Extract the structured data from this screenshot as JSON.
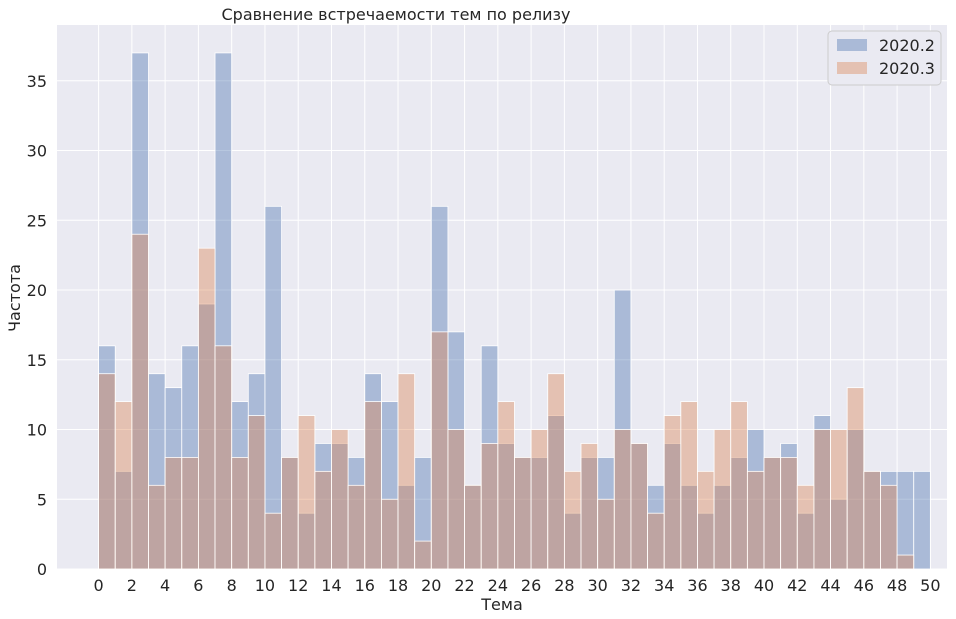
{
  "chart_data": {
    "type": "bar",
    "title": "Сравнение встречаемости тем по релизу",
    "xlabel": "Тема",
    "ylabel": "Частота",
    "xlim": [
      -2.5,
      51.0
    ],
    "ylim": [
      0,
      39
    ],
    "x_ticks": [
      0,
      2,
      4,
      6,
      8,
      10,
      12,
      14,
      16,
      18,
      20,
      22,
      24,
      26,
      28,
      30,
      32,
      34,
      36,
      38,
      40,
      42,
      44,
      46,
      48,
      50
    ],
    "y_ticks": [
      0,
      5,
      10,
      15,
      20,
      25,
      30,
      35
    ],
    "bin_width": 1,
    "grid": true,
    "legend_position": "top-right",
    "series": [
      {
        "name": "2020.2",
        "color": "#4c72b0",
        "values": [
          16,
          7,
          37,
          14,
          13,
          16,
          19,
          37,
          12,
          14,
          26,
          8,
          4,
          9,
          9,
          8,
          14,
          12,
          6,
          8,
          26,
          17,
          6,
          16,
          9,
          8,
          8,
          11,
          4,
          8,
          8,
          20,
          9,
          6,
          9,
          6,
          4,
          6,
          8,
          10,
          8,
          9,
          4,
          11,
          5,
          10,
          7,
          7,
          7,
          7
        ]
      },
      {
        "name": "2020.3",
        "color": "#dd8452",
        "values": [
          14,
          12,
          24,
          6,
          8,
          8,
          23,
          16,
          8,
          11,
          4,
          8,
          11,
          7,
          10,
          6,
          12,
          5,
          14,
          2,
          17,
          10,
          6,
          9,
          12,
          8,
          10,
          14,
          7,
          9,
          5,
          10,
          9,
          4,
          11,
          12,
          7,
          10,
          12,
          7,
          8,
          8,
          6,
          10,
          10,
          13,
          7,
          6,
          1,
          0
        ]
      }
    ]
  }
}
